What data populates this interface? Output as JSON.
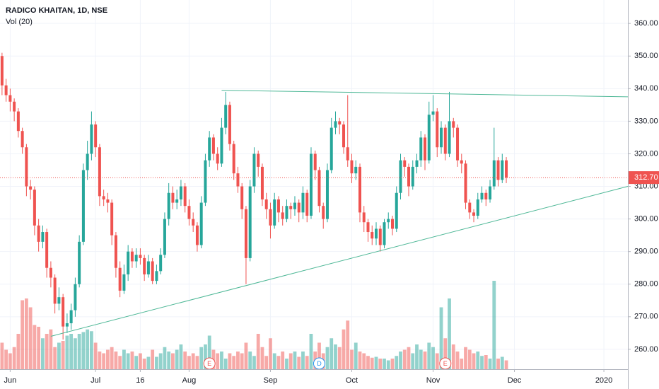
{
  "chart_data": {
    "type": "candlestick",
    "title": "RADICO KHAITAN, 1D, NSE",
    "indicator": "Vol (20)",
    "up_color": "#26a69a",
    "down_color": "#ef5350",
    "open": [
      350,
      341,
      338,
      336,
      333,
      327,
      322,
      310,
      309,
      298,
      293,
      296,
      285,
      282,
      274,
      276,
      267,
      268,
      272,
      280,
      293,
      315,
      320,
      329,
      322,
      307,
      306,
      305,
      295,
      285,
      278,
      283,
      290,
      287,
      289,
      288,
      283,
      287,
      281,
      284,
      289,
      300,
      308,
      305,
      306,
      310,
      304,
      300,
      298,
      292,
      305,
      318,
      325,
      320,
      317,
      328,
      335,
      323,
      314,
      310,
      303,
      288,
      310,
      320,
      316,
      306,
      303,
      298,
      306,
      302,
      300,
      304,
      303,
      305,
      302,
      308,
      301,
      320,
      315,
      304,
      300,
      315,
      328,
      330,
      329,
      322,
      318,
      314,
      316,
      302,
      299,
      296,
      294,
      297,
      292,
      299,
      300,
      297,
      308,
      318,
      316,
      310,
      316,
      318,
      325,
      318,
      332,
      333,
      322,
      328,
      320,
      330,
      328,
      318,
      317,
      305,
      302,
      301,
      306,
      308,
      306,
      310,
      318,
      312,
      318
    ],
    "high": [
      351,
      343,
      340,
      337,
      334,
      328,
      323,
      312,
      310,
      300,
      298,
      297,
      287,
      283,
      279,
      277,
      271,
      274,
      282,
      295,
      317,
      324,
      333,
      330,
      323,
      309,
      308,
      306,
      296,
      287,
      286,
      292,
      291,
      291,
      291,
      289,
      289,
      288,
      286,
      291,
      302,
      311,
      310,
      309,
      312,
      311,
      306,
      302,
      299,
      307,
      320,
      327,
      326,
      322,
      331,
      339,
      336,
      324,
      316,
      311,
      304,
      312,
      322,
      321,
      317,
      308,
      305,
      308,
      307,
      304,
      306,
      305,
      307,
      306,
      310,
      309,
      322,
      321,
      316,
      305,
      317,
      331,
      333,
      331,
      330,
      338,
      320,
      318,
      317,
      304,
      300,
      298,
      299,
      298,
      300,
      302,
      301,
      310,
      320,
      319,
      317,
      318,
      320,
      327,
      326,
      336,
      338,
      334,
      330,
      329,
      339,
      331,
      329,
      320,
      318,
      306,
      303,
      308,
      310,
      309,
      312,
      328,
      319,
      320,
      319
    ],
    "low": [
      338,
      336,
      333,
      330,
      325,
      320,
      307,
      306,
      295,
      290,
      291,
      282,
      279,
      271,
      272,
      263,
      265,
      266,
      270,
      279,
      292,
      312,
      318,
      319,
      304,
      304,
      302,
      292,
      282,
      276,
      277,
      281,
      285,
      285,
      286,
      281,
      282,
      280,
      280,
      283,
      288,
      298,
      303,
      303,
      304,
      302,
      298,
      296,
      290,
      291,
      304,
      316,
      318,
      315,
      316,
      326,
      321,
      312,
      308,
      300,
      280,
      287,
      308,
      313,
      304,
      300,
      294,
      297,
      299,
      298,
      299,
      300,
      301,
      299,
      300,
      299,
      300,
      312,
      302,
      297,
      299,
      314,
      326,
      326,
      320,
      316,
      311,
      312,
      299,
      296,
      293,
      292,
      292,
      290,
      291,
      297,
      295,
      296,
      306,
      313,
      307,
      309,
      314,
      316,
      315,
      317,
      330,
      319,
      320,
      318,
      319,
      325,
      316,
      314,
      303,
      300,
      299,
      300,
      305,
      304,
      305,
      309,
      310,
      311,
      311
    ],
    "close": [
      341,
      338,
      336,
      333,
      327,
      322,
      310,
      309,
      298,
      293,
      296,
      285,
      282,
      274,
      276,
      267,
      268,
      272,
      280,
      293,
      315,
      320,
      329,
      322,
      307,
      306,
      305,
      295,
      285,
      278,
      283,
      290,
      287,
      289,
      288,
      283,
      287,
      281,
      284,
      289,
      300,
      308,
      305,
      306,
      310,
      304,
      300,
      298,
      292,
      305,
      318,
      325,
      320,
      317,
      328,
      335,
      323,
      314,
      310,
      303,
      288,
      310,
      320,
      316,
      306,
      303,
      298,
      306,
      302,
      300,
      304,
      303,
      305,
      302,
      308,
      301,
      320,
      315,
      304,
      300,
      315,
      328,
      330,
      329,
      322,
      318,
      314,
      316,
      302,
      299,
      296,
      294,
      297,
      292,
      299,
      300,
      297,
      308,
      318,
      316,
      310,
      316,
      318,
      325,
      318,
      332,
      333,
      322,
      328,
      320,
      330,
      328,
      318,
      317,
      305,
      302,
      301,
      306,
      308,
      306,
      310,
      318,
      312,
      318,
      312.7
    ],
    "volume": [
      30,
      22,
      18,
      25,
      40,
      78,
      80,
      70,
      50,
      48,
      35,
      40,
      45,
      25,
      30,
      32,
      38,
      40,
      35,
      40,
      42,
      45,
      43,
      30,
      20,
      18,
      22,
      25,
      20,
      15,
      22,
      18,
      20,
      15,
      18,
      12,
      14,
      22,
      14,
      18,
      25,
      20,
      18,
      22,
      28,
      20,
      15,
      18,
      15,
      25,
      28,
      38,
      22,
      18,
      20,
      12,
      18,
      15,
      20,
      18,
      30,
      20,
      15,
      40,
      25,
      15,
      35,
      18,
      15,
      20,
      12,
      18,
      20,
      14,
      20,
      15,
      40,
      20,
      30,
      18,
      25,
      35,
      28,
      25,
      45,
      55,
      22,
      30,
      20,
      18,
      15,
      13,
      14,
      12,
      12,
      10,
      12,
      15,
      20,
      22,
      25,
      18,
      28,
      22,
      20,
      30,
      25,
      18,
      70,
      35,
      80,
      28,
      20,
      12,
      25,
      22,
      18,
      20,
      15,
      16,
      12,
      100,
      12,
      14,
      10
    ],
    "xlim": [
      -0.5,
      153.9
    ],
    "xticks": [
      {
        "value": 2,
        "label": "Jun"
      },
      {
        "value": 23,
        "label": "Jul"
      },
      {
        "value": 34,
        "label": "16"
      },
      {
        "value": 46,
        "label": "Aug"
      },
      {
        "value": 66,
        "label": "Sep"
      },
      {
        "value": 86,
        "label": "Oct"
      },
      {
        "value": 106,
        "label": "Nov"
      },
      {
        "value": 126,
        "label": "Dec"
      },
      {
        "value": 148,
        "label": "2020"
      }
    ],
    "ylim": [
      253.9,
      367.2
    ],
    "yticks": [
      {
        "value": 260,
        "label": "260.00"
      },
      {
        "value": 270,
        "label": "270.00"
      },
      {
        "value": 280,
        "label": "280.00"
      },
      {
        "value": 290,
        "label": "290.00"
      },
      {
        "value": 300,
        "label": "300.00"
      },
      {
        "value": 310,
        "label": "310.00"
      },
      {
        "value": 320,
        "label": "320.00"
      },
      {
        "value": 330,
        "label": "330.00"
      },
      {
        "value": 340,
        "label": "340.00"
      },
      {
        "value": 350,
        "label": "350.00"
      },
      {
        "value": 360,
        "label": "360.00"
      }
    ],
    "last_price": {
      "value": 312.7,
      "label": "312.70"
    },
    "trendlines": [
      {
        "x": [
          54,
          153.9
        ],
        "y": [
          339.5,
          337.5
        ],
        "color": "#4fb897"
      },
      {
        "x": [
          12,
          153.9
        ],
        "y": [
          264,
          310
        ],
        "color": "#4fb897"
      }
    ],
    "events": [
      {
        "label": "E",
        "at": 51,
        "color": "#ef5350"
      },
      {
        "label": "D",
        "at": 78,
        "color": "#2196f3"
      },
      {
        "label": "E",
        "at": 109,
        "color": "#ef5350"
      }
    ],
    "grid": true
  }
}
